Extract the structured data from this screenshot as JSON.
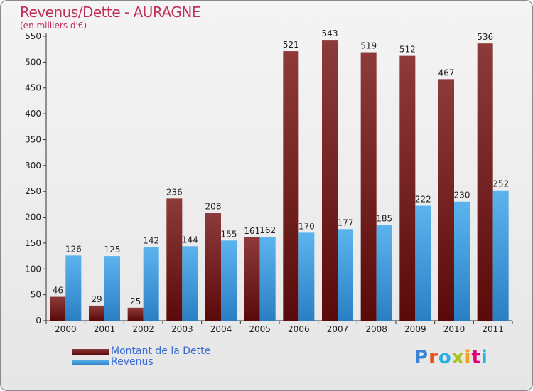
{
  "title": "Revenus/Dette - AURAGNE",
  "subtitle": "(en milliers d'€)",
  "logo": {
    "text": "Proxiti",
    "colors": [
      "#3a86d4",
      "#e94e1b",
      "#2bb0e0",
      "#a5c422",
      "#f2a01d",
      "#e2007a",
      "#2bb0e0"
    ]
  },
  "colors": {
    "dette": "#7a1a1a",
    "revenus": "#3f9fe0",
    "title": "#c0305a"
  },
  "chart_data": {
    "type": "bar",
    "title": "Revenus/Dette - AURAGNE",
    "subtitle": "(en milliers d'€)",
    "categories": [
      "2000",
      "2001",
      "2002",
      "2003",
      "2004",
      "2005",
      "2006",
      "2007",
      "2008",
      "2009",
      "2010",
      "2011"
    ],
    "series": [
      {
        "name": "Montant de la Dette",
        "values": [
          46,
          29,
          25,
          236,
          208,
          161,
          521,
          543,
          519,
          512,
          467,
          536
        ]
      },
      {
        "name": "Revenus",
        "values": [
          126,
          125,
          142,
          144,
          155,
          162,
          170,
          177,
          185,
          222,
          230,
          252
        ]
      }
    ],
    "ylim": [
      0,
      550
    ],
    "yticks": [
      0,
      50,
      100,
      150,
      200,
      250,
      300,
      350,
      400,
      450,
      500,
      550
    ],
    "grid": false,
    "legend_position": "bottom-left"
  }
}
